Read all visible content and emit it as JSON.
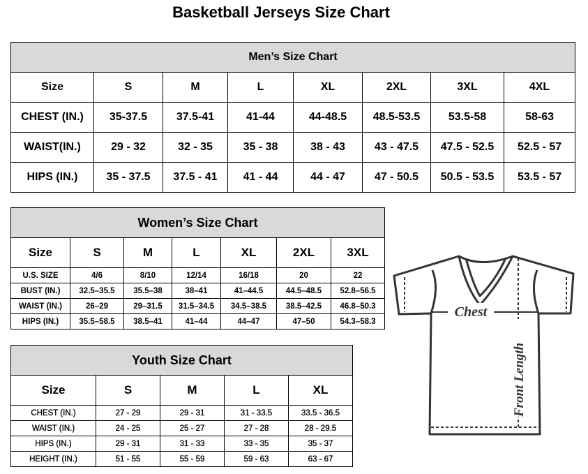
{
  "title": "Basketball Jerseys Size Chart",
  "men": {
    "title": "Men’s Size Chart",
    "headers": [
      "Size",
      "S",
      "M",
      "L",
      "XL",
      "2XL",
      "3XL",
      "4XL"
    ],
    "rows": [
      [
        "CHEST (IN.)",
        "35-37.5",
        "37.5-41",
        "41-44",
        "44-48.5",
        "48.5-53.5",
        "53.5-58",
        "58-63"
      ],
      [
        "WAIST(IN.)",
        "29 - 32",
        "32 - 35",
        "35 - 38",
        "38 - 43",
        "43 - 47.5",
        "47.5 - 52.5",
        "52.5 - 57"
      ],
      [
        "HIPS (IN.)",
        "35 - 37.5",
        "37.5 - 41",
        "41 - 44",
        "44 - 47",
        "47 - 50.5",
        "50.5 - 53.5",
        "53.5 - 57"
      ]
    ]
  },
  "women": {
    "title": "Women’s Size Chart",
    "headers": [
      "Size",
      "S",
      "M",
      "L",
      "XL",
      "2XL",
      "3XL"
    ],
    "rows": [
      [
        "U.S. SIZE",
        "4/6",
        "8/10",
        "12/14",
        "16/18",
        "20",
        "22"
      ],
      [
        "BUST (IN.)",
        "32.5–35.5",
        "35.5–38",
        "38–41",
        "41–44.5",
        "44.5–48.5",
        "52.8–56.5"
      ],
      [
        "WAIST (IN.)",
        "26–29",
        "29–31.5",
        "31.5–34.5",
        "34.5–38.5",
        "38.5–42.5",
        "46.8–50.3"
      ],
      [
        "HIPS (IN.)",
        "35.5–58.5",
        "38.5–41",
        "41–44",
        "44–47",
        "47–50",
        "54.3–58.3"
      ]
    ]
  },
  "youth": {
    "title": "Youth Size Chart",
    "headers": [
      "Size",
      "S",
      "M",
      "L",
      "XL"
    ],
    "rows": [
      [
        "CHEST (IN.)",
        "27 - 29",
        "29 - 31",
        "31 - 33.5",
        "33.5 - 36.5"
      ],
      [
        "WAIST (IN.)",
        "24 - 25",
        "25 - 27",
        "27 - 28",
        "28 - 29.5"
      ],
      [
        "HIPS (IN.)",
        "29 - 31",
        "31 - 33",
        "33 - 35",
        "35 - 37"
      ],
      [
        "HEIGHT (IN.)",
        "51 - 55",
        "55 - 59",
        "59 - 63",
        "63 - 67"
      ]
    ]
  },
  "diagram": {
    "chest_label": "Chest",
    "length_label": "Front Length"
  }
}
